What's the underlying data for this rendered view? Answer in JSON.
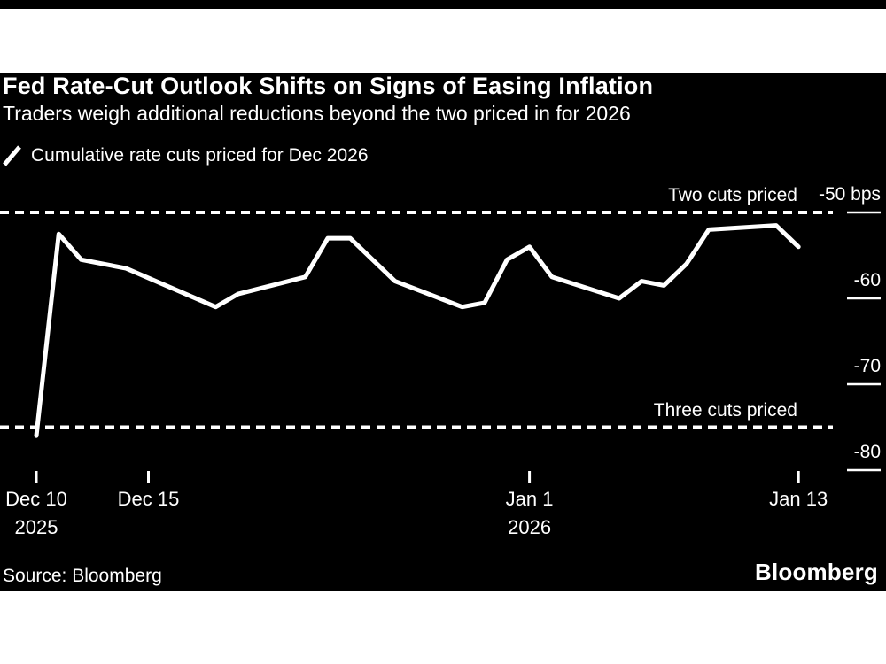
{
  "header": {
    "title": "Fed Rate-Cut Outlook Shifts on Signs of Easing Inflation",
    "subtitle": "Traders weigh additional reductions beyond the two priced in for 2026"
  },
  "legend": {
    "label": "Cumulative rate cuts priced for Dec 2026",
    "swatch_icon": "white-diagonal-line"
  },
  "footer": {
    "source": "Source: Bloomberg",
    "brand": "Bloomberg"
  },
  "colors": {
    "page_bg": "#ffffff",
    "figure_bg": "#000000",
    "text": "#ffffff",
    "line": "#ffffff"
  },
  "chart_data": {
    "type": "line",
    "title": "Fed Rate-Cut Outlook Shifts on Signs of Easing Inflation",
    "subtitle": "Traders weigh additional reductions beyond the two priced in for 2026",
    "xlabel": "",
    "ylabel": "bps",
    "grid": false,
    "legend_position": "top-left",
    "ylim": [
      -81,
      -48
    ],
    "y_axis": {
      "side": "right",
      "ticks": [
        -50,
        -60,
        -70,
        -80
      ],
      "tick_labels": [
        "-50",
        "-60",
        "-70",
        "-80"
      ],
      "unit_label": "bps"
    },
    "x_axis": {
      "ticks": [
        {
          "label": "Dec 10",
          "sublabel": "2025",
          "day": 0
        },
        {
          "label": "Dec 15",
          "sublabel": "",
          "day": 5
        },
        {
          "label": "Jan 1",
          "sublabel": "2026",
          "day": 22
        },
        {
          "label": "Jan 13",
          "sublabel": "",
          "day": 34
        }
      ]
    },
    "reference_lines": [
      {
        "label": "Two cuts priced",
        "bps": -50,
        "style": "dashed"
      },
      {
        "label": "Three cuts priced",
        "bps": -75,
        "style": "dashed"
      }
    ],
    "series": [
      {
        "name": "Cumulative rate cuts priced for Dec 2026",
        "points": [
          {
            "date": "Dec 10 2025",
            "day": 0,
            "bps": -76
          },
          {
            "date": "Dec 11 2025",
            "day": 1,
            "bps": -52.5
          },
          {
            "date": "Dec 12 2025",
            "day": 2,
            "bps": -55.5
          },
          {
            "date": "Dec 14 2025",
            "day": 4,
            "bps": -56.5
          },
          {
            "date": "Dec 18 2025",
            "day": 8,
            "bps": -61
          },
          {
            "date": "Dec 19 2025",
            "day": 9,
            "bps": -59.5
          },
          {
            "date": "Dec 22 2025",
            "day": 12,
            "bps": -57.5
          },
          {
            "date": "Dec 23 2025",
            "day": 13,
            "bps": -53
          },
          {
            "date": "Dec 24 2025",
            "day": 14,
            "bps": -53
          },
          {
            "date": "Dec 26 2025",
            "day": 16,
            "bps": -58
          },
          {
            "date": "Dec 29 2025",
            "day": 19,
            "bps": -61
          },
          {
            "date": "Dec 30 2025",
            "day": 20,
            "bps": -60.5
          },
          {
            "date": "Dec 31 2025",
            "day": 21,
            "bps": -55.5
          },
          {
            "date": "Jan 1 2026",
            "day": 22,
            "bps": -54
          },
          {
            "date": "Jan 2 2026",
            "day": 23,
            "bps": -57.5
          },
          {
            "date": "Jan 5 2026",
            "day": 26,
            "bps": -60
          },
          {
            "date": "Jan 6 2026",
            "day": 27,
            "bps": -58
          },
          {
            "date": "Jan 7 2026",
            "day": 28,
            "bps": -58.5
          },
          {
            "date": "Jan 8 2026",
            "day": 29,
            "bps": -56
          },
          {
            "date": "Jan 9 2026",
            "day": 30,
            "bps": -52
          },
          {
            "date": "Jan 12 2026",
            "day": 33,
            "bps": -51.5
          },
          {
            "date": "Jan 13 2026",
            "day": 34,
            "bps": -54
          }
        ]
      }
    ]
  }
}
